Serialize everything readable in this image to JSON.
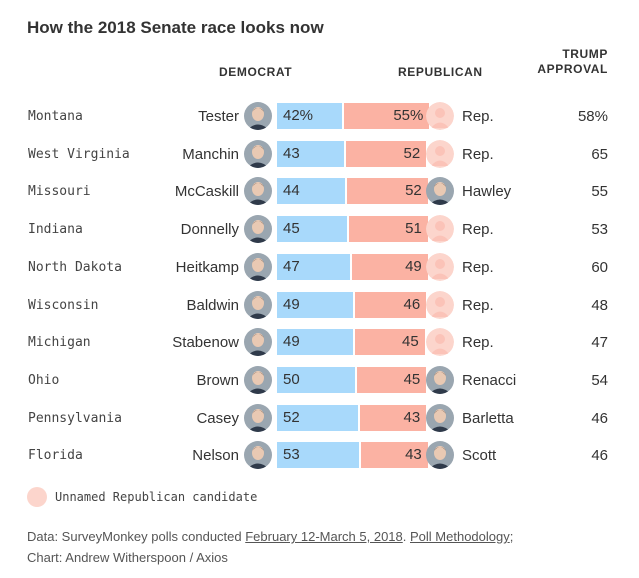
{
  "title": "How the 2018 Senate race looks now",
  "headers": {
    "democrat": "DEMOCRAT",
    "republican": "REPUBLICAN",
    "trump_line1": "TRUMP",
    "trump_line2": "APPROVAL"
  },
  "colors": {
    "democrat_bar": "#a8d9fb",
    "republican_bar": "#fbb2a3",
    "unnamed_candidate": "#fcd5cc"
  },
  "chart_data": {
    "type": "bar",
    "orientation": "horizontal",
    "stacked": true,
    "categories": [
      "Montana",
      "West Virginia",
      "Missouri",
      "Indiana",
      "North Dakota",
      "Wisconsin",
      "Michigan",
      "Ohio",
      "Pennsylvania",
      "Florida"
    ],
    "series": [
      {
        "name": "DEMOCRAT",
        "values": [
          42,
          43,
          44,
          45,
          47,
          49,
          49,
          50,
          52,
          53
        ]
      },
      {
        "name": "REPUBLICAN",
        "values": [
          55,
          52,
          52,
          51,
          49,
          46,
          45,
          45,
          43,
          43
        ]
      }
    ],
    "trump_approval": [
      58,
      65,
      55,
      53,
      60,
      48,
      47,
      54,
      46,
      46
    ],
    "rows": [
      {
        "state": "Montana",
        "dem": "Tester",
        "dem_label": "42%",
        "dem_value": 42,
        "rep_label": "55%",
        "rep_value": 55,
        "rep": "Rep.",
        "rep_unnamed": true,
        "trump": "58%"
      },
      {
        "state": "West Virginia",
        "dem": "Manchin",
        "dem_label": "43",
        "dem_value": 43,
        "rep_label": "52",
        "rep_value": 52,
        "rep": "Rep.",
        "rep_unnamed": true,
        "trump": "65"
      },
      {
        "state": "Missouri",
        "dem": "McCaskill",
        "dem_label": "44",
        "dem_value": 44,
        "rep_label": "52",
        "rep_value": 52,
        "rep": "Hawley",
        "rep_unnamed": false,
        "trump": "55"
      },
      {
        "state": "Indiana",
        "dem": "Donnelly",
        "dem_label": "45",
        "dem_value": 45,
        "rep_label": "51",
        "rep_value": 51,
        "rep": "Rep.",
        "rep_unnamed": true,
        "trump": "53"
      },
      {
        "state": "North Dakota",
        "dem": "Heitkamp",
        "dem_label": "47",
        "dem_value": 47,
        "rep_label": "49",
        "rep_value": 49,
        "rep": "Rep.",
        "rep_unnamed": true,
        "trump": "60"
      },
      {
        "state": "Wisconsin",
        "dem": "Baldwin",
        "dem_label": "49",
        "dem_value": 49,
        "rep_label": "46",
        "rep_value": 46,
        "rep": "Rep.",
        "rep_unnamed": true,
        "trump": "48"
      },
      {
        "state": "Michigan",
        "dem": "Stabenow",
        "dem_label": "49",
        "dem_value": 49,
        "rep_label": "45",
        "rep_value": 45,
        "rep": "Rep.",
        "rep_unnamed": true,
        "trump": "47"
      },
      {
        "state": "Ohio",
        "dem": "Brown",
        "dem_label": "50",
        "dem_value": 50,
        "rep_label": "45",
        "rep_value": 45,
        "rep": "Renacci",
        "rep_unnamed": false,
        "trump": "54"
      },
      {
        "state": "Pennsylvania",
        "dem": "Casey",
        "dem_label": "52",
        "dem_value": 52,
        "rep_label": "43",
        "rep_value": 43,
        "rep": "Barletta",
        "rep_unnamed": false,
        "trump": "46"
      },
      {
        "state": "Florida",
        "dem": "Nelson",
        "dem_label": "53",
        "dem_value": 53,
        "rep_label": "43",
        "rep_value": 43,
        "rep": "Scott",
        "rep_unnamed": false,
        "trump": "46"
      }
    ]
  },
  "legend": {
    "label": "Unnamed Republican candidate"
  },
  "source": {
    "prefix": "Data: SurveyMonkey polls conducted ",
    "dates_link": "February 12-March 5, 2018",
    "mid": ". ",
    "methodology_link": "Poll Methodology",
    "suffix": ";",
    "credit": "Chart: Andrew Witherspoon / Axios"
  }
}
